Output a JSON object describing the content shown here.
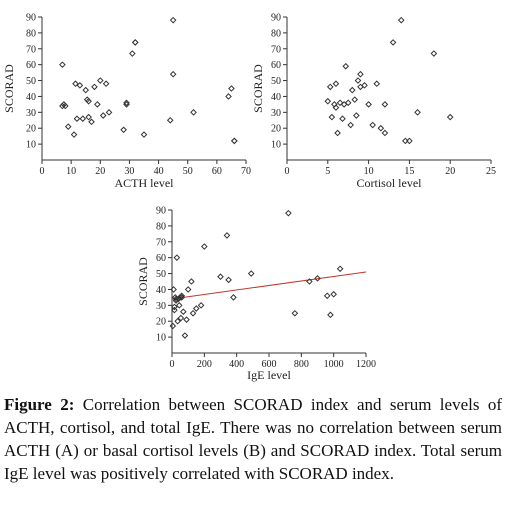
{
  "chart_data": [
    {
      "type": "scatter",
      "title": "",
      "xlabel": "ACTH level",
      "ylabel": "SCORAD",
      "xlim": [
        0,
        70
      ],
      "ylim": [
        0,
        90
      ],
      "xticks": [
        0,
        10,
        20,
        30,
        40,
        50,
        60,
        70
      ],
      "yticks": [
        10,
        20,
        30,
        40,
        50,
        60,
        70,
        80,
        90
      ],
      "grid": false,
      "x": [
        7,
        7.5,
        8,
        7,
        9,
        11,
        11.5,
        12,
        13,
        14,
        15,
        15.5,
        16,
        16,
        17,
        18,
        19,
        20,
        21,
        22,
        23,
        29,
        29,
        28,
        31,
        32,
        32,
        35,
        44,
        45,
        45,
        52,
        64,
        65,
        66,
        66
      ],
      "y": [
        60,
        35,
        34,
        34,
        21,
        16,
        48,
        26,
        47,
        26,
        44,
        38,
        37,
        27,
        24,
        46,
        35,
        50,
        28,
        48,
        30,
        36,
        35,
        19,
        67,
        74,
        74,
        16,
        25,
        88,
        54,
        30,
        40,
        45,
        12,
        12
      ]
    },
    {
      "type": "scatter",
      "title": "",
      "xlabel": "Cortisol level",
      "ylabel": "SCORAD",
      "xlim": [
        0,
        25
      ],
      "ylim": [
        0,
        90
      ],
      "xticks": [
        0,
        5,
        10,
        15,
        20,
        25
      ],
      "yticks": [
        10,
        20,
        30,
        40,
        50,
        60,
        70,
        80,
        90
      ],
      "grid": false,
      "x": [
        5,
        5.3,
        5.5,
        5.8,
        6,
        6,
        6.2,
        6.5,
        6.8,
        7,
        7.2,
        7.5,
        7.8,
        8,
        8.3,
        8.5,
        8.7,
        9,
        9,
        9.5,
        10,
        10.5,
        11,
        11.5,
        12,
        12,
        13,
        14,
        15,
        16,
        18,
        20,
        14.5
      ],
      "y": [
        37,
        46,
        27,
        35,
        48,
        33,
        17,
        36,
        26,
        35,
        59,
        36,
        22,
        44,
        38,
        28,
        50,
        54,
        46,
        47,
        35,
        22,
        48,
        20,
        17,
        35,
        74,
        88,
        12,
        30,
        67,
        27,
        12
      ]
    },
    {
      "type": "scatter",
      "title": "",
      "xlabel": "IgE level",
      "ylabel": "SCORAD",
      "xlim": [
        0,
        1200
      ],
      "ylim": [
        0,
        90
      ],
      "xticks": [
        0,
        200,
        400,
        600,
        800,
        1000,
        1200
      ],
      "yticks": [
        10,
        20,
        30,
        40,
        50,
        60,
        70,
        80,
        90
      ],
      "grid": false,
      "x": [
        5,
        10,
        15,
        20,
        25,
        30,
        35,
        40,
        45,
        50,
        55,
        60,
        70,
        80,
        90,
        100,
        120,
        130,
        150,
        180,
        200,
        300,
        340,
        350,
        380,
        490,
        720,
        760,
        850,
        900,
        960,
        1000,
        1040,
        980,
        15,
        25,
        60
      ],
      "y": [
        17,
        40,
        27,
        35,
        34,
        60,
        20,
        34,
        30,
        35,
        22,
        35,
        26,
        11,
        21,
        40,
        45,
        25,
        28,
        30,
        67,
        48,
        74,
        46,
        35,
        50,
        88,
        25,
        45,
        47,
        36,
        37,
        53,
        24,
        29,
        33,
        36
      ],
      "trendline": {
        "x": [
          0,
          1200
        ],
        "y": [
          34,
          51
        ]
      }
    }
  ],
  "caption": {
    "lead": "Figure 2:",
    "text": " Correlation between SCORAD index and serum levels of ACTH, cortisol, and total IgE. There was no correlation between serum ACTH (A) or basal cortisol levels (B) and SCORAD index. Total serum IgE level was positively correlated with SCORAD index."
  },
  "colors": {
    "marker": "#333333",
    "trendline": "#c0392b"
  }
}
